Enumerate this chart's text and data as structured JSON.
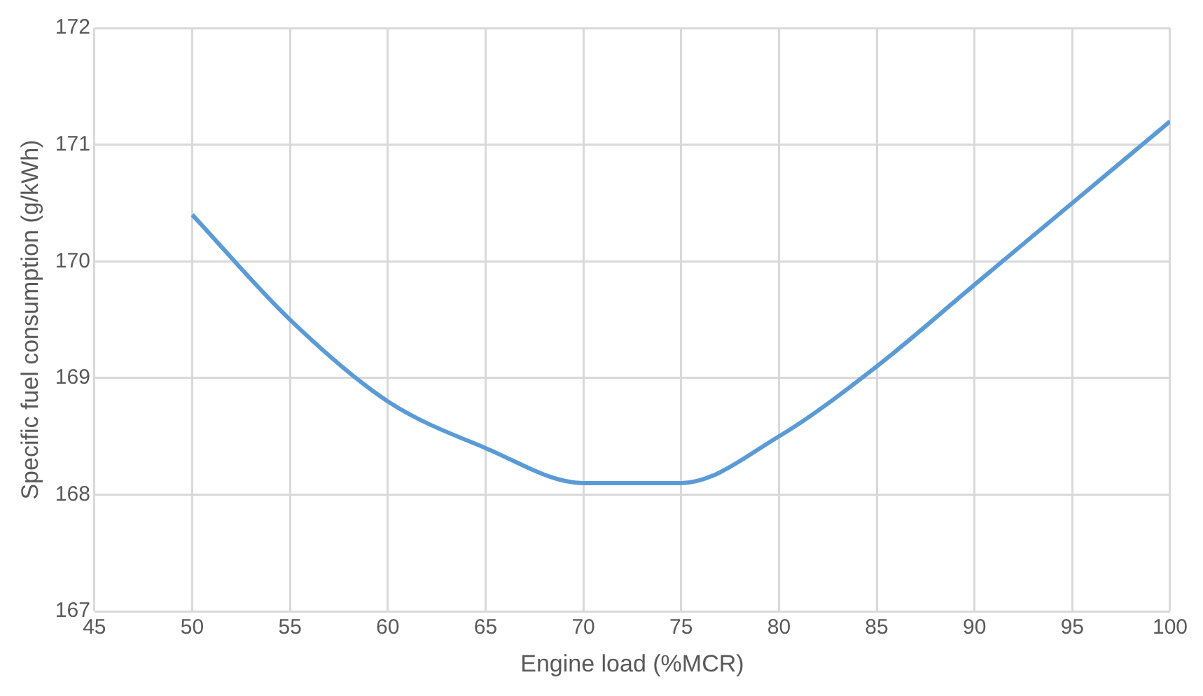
{
  "chart_data": {
    "type": "line",
    "xlabel": "Engine load (%MCR)",
    "ylabel": "Specific fuel consumption (g/kWh)",
    "x": [
      50,
      55,
      60,
      65,
      70,
      75,
      80,
      85,
      90,
      95,
      100
    ],
    "series": [
      {
        "color": "#5b9bd5",
        "values": [
          170.4,
          169.5,
          168.8,
          168.4,
          168.1,
          168.1,
          168.5,
          169.1,
          169.8,
          170.5,
          171.2
        ]
      }
    ],
    "xlim": [
      45,
      100
    ],
    "xticks": [
      45,
      50,
      55,
      60,
      65,
      70,
      75,
      80,
      85,
      90,
      95,
      100
    ],
    "ylim": [
      167,
      172
    ],
    "yticks": [
      167,
      168,
      169,
      170,
      171,
      172
    ],
    "grid": true,
    "legend": false,
    "marker": "none",
    "line_style": "solid"
  }
}
